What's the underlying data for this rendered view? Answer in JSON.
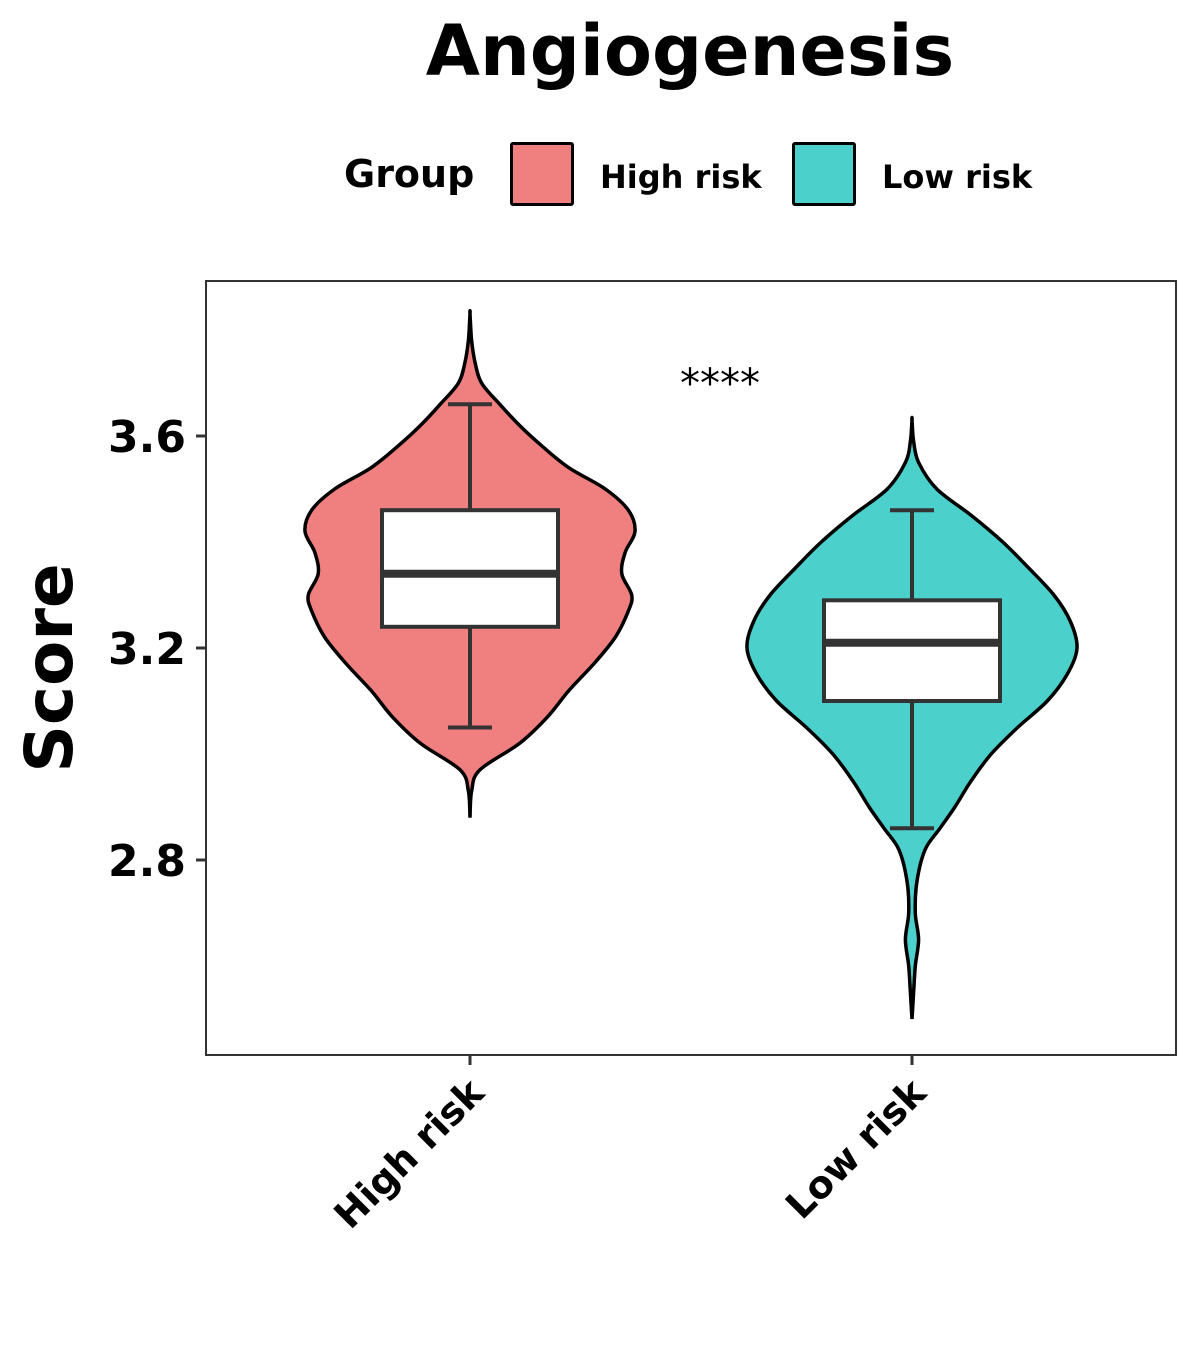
{
  "chart_data": {
    "type": "violin",
    "title": "Angiogenesis",
    "xlabel": "",
    "ylabel": "Score",
    "ylim": [
      2.49,
      3.95
    ],
    "yticks": [
      2.8,
      3.2,
      3.6
    ],
    "yticklabels": [
      "2.8",
      "3.2",
      "3.6"
    ],
    "categories": [
      "High risk",
      "Low risk"
    ],
    "legend": {
      "title": "Group",
      "placement": "top",
      "entries": [
        {
          "label": "High risk",
          "color": "#F08080"
        },
        {
          "label": "Low risk",
          "color": "#4BD0CC"
        }
      ]
    },
    "annotation": "****",
    "series": [
      {
        "name": "High risk",
        "color": "#F08080",
        "box": {
          "whisker_low": 3.05,
          "q1": 3.24,
          "median": 3.34,
          "q3": 3.46,
          "whisker_high": 3.66
        },
        "density": [
          [
            2.88,
            0.0
          ],
          [
            2.93,
            0.01
          ],
          [
            2.97,
            0.06
          ],
          [
            3.02,
            0.3
          ],
          [
            3.07,
            0.47
          ],
          [
            3.12,
            0.6
          ],
          [
            3.17,
            0.75
          ],
          [
            3.22,
            0.88
          ],
          [
            3.27,
            0.96
          ],
          [
            3.3,
            0.98
          ],
          [
            3.34,
            0.92
          ],
          [
            3.38,
            0.94
          ],
          [
            3.42,
            1.0
          ],
          [
            3.46,
            0.96
          ],
          [
            3.5,
            0.82
          ],
          [
            3.54,
            0.6
          ],
          [
            3.58,
            0.44
          ],
          [
            3.62,
            0.3
          ],
          [
            3.66,
            0.18
          ],
          [
            3.7,
            0.07
          ],
          [
            3.74,
            0.03
          ],
          [
            3.78,
            0.01
          ],
          [
            3.83,
            0.0
          ]
        ]
      },
      {
        "name": "Low risk",
        "color": "#4BD0CC",
        "box": {
          "whisker_low": 2.86,
          "q1": 3.1,
          "median": 3.21,
          "q3": 3.29,
          "whisker_high": 3.46
        },
        "density": [
          [
            2.5,
            0.0
          ],
          [
            2.55,
            0.01
          ],
          [
            2.6,
            0.02
          ],
          [
            2.65,
            0.04
          ],
          [
            2.7,
            0.02
          ],
          [
            2.76,
            0.03
          ],
          [
            2.82,
            0.08
          ],
          [
            2.86,
            0.17
          ],
          [
            2.9,
            0.26
          ],
          [
            2.95,
            0.36
          ],
          [
            3.0,
            0.48
          ],
          [
            3.05,
            0.64
          ],
          [
            3.1,
            0.82
          ],
          [
            3.15,
            0.94
          ],
          [
            3.2,
            1.0
          ],
          [
            3.25,
            0.96
          ],
          [
            3.3,
            0.86
          ],
          [
            3.35,
            0.71
          ],
          [
            3.4,
            0.55
          ],
          [
            3.45,
            0.36
          ],
          [
            3.5,
            0.15
          ],
          [
            3.55,
            0.04
          ],
          [
            3.59,
            0.01
          ],
          [
            3.63,
            0.0
          ]
        ]
      }
    ]
  }
}
